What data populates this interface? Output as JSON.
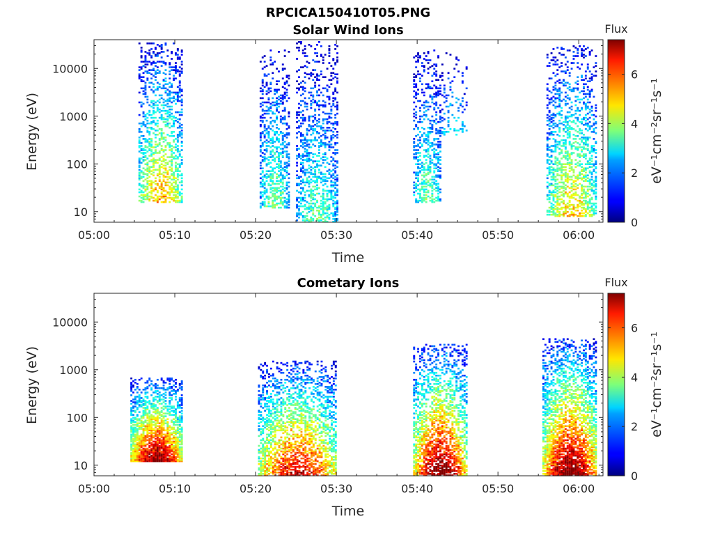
{
  "figure": {
    "title": "RPCICA150410T05.PNG"
  },
  "chart_data": [
    {
      "type": "heatmap",
      "title": "Solar Wind Ions",
      "xlabel": "Time",
      "ylabel": "Energy (eV)",
      "x_ticks": [
        "05:00",
        "05:10",
        "05:20",
        "05:30",
        "05:40",
        "05:50",
        "06:00"
      ],
      "xlim_minutes": [
        0,
        63
      ],
      "y_scale": "log",
      "y_ticks": [
        "10",
        "100",
        "1000",
        "10000"
      ],
      "ylim": [
        6,
        40000
      ],
      "colorbar": {
        "title": "Flux",
        "label": "eV⁻¹cm⁻²sr⁻¹s⁻¹",
        "ticks": [
          "0",
          "2",
          "4",
          "6"
        ],
        "range": [
          0,
          7.4
        ],
        "colormap": "jet"
      },
      "clusters": [
        {
          "t0": 5.5,
          "t1": 10.8,
          "e_lo": 15,
          "e_hi": 35000,
          "peak": 5.0,
          "density": 0.45
        },
        {
          "t0": 20.5,
          "t1": 24.0,
          "e_lo": 12,
          "e_hi": 25000,
          "peak": 3.6,
          "density": 0.4
        },
        {
          "t0": 25.0,
          "t1": 30.0,
          "e_lo": 6,
          "e_hi": 38000,
          "peak": 3.3,
          "density": 0.38
        },
        {
          "t0": 39.5,
          "t1": 42.8,
          "e_lo": 15,
          "e_hi": 25000,
          "peak": 3.5,
          "density": 0.42
        },
        {
          "t0": 43.0,
          "t1": 46.0,
          "e_lo": 400,
          "e_hi": 22000,
          "peak": 2.8,
          "density": 0.15
        },
        {
          "t0": 56.0,
          "t1": 62.0,
          "e_lo": 8,
          "e_hi": 30000,
          "peak": 4.8,
          "density": 0.42
        }
      ]
    },
    {
      "type": "heatmap",
      "title": "Cometary Ions",
      "xlabel": "Time",
      "ylabel": "Energy (eV)",
      "x_ticks": [
        "05:00",
        "05:10",
        "05:20",
        "05:30",
        "05:40",
        "05:50",
        "06:00"
      ],
      "xlim_minutes": [
        0,
        63
      ],
      "y_scale": "log",
      "y_ticks": [
        "10",
        "100",
        "1000",
        "10000"
      ],
      "ylim": [
        6,
        40000
      ],
      "colorbar": {
        "title": "Flux",
        "label": "eV⁻¹cm⁻²sr⁻¹s⁻¹",
        "ticks": [
          "0",
          "2",
          "4",
          "6"
        ],
        "range": [
          0,
          7.4
        ],
        "colormap": "jet"
      },
      "clusters": [
        {
          "t0": 4.5,
          "t1": 10.8,
          "e_lo": 12,
          "e_hi": 700,
          "peak": 7.2,
          "density": 0.8
        },
        {
          "t0": 20.3,
          "t1": 30.0,
          "e_lo": 6,
          "e_hi": 1500,
          "peak": 6.5,
          "density": 0.55
        },
        {
          "t0": 39.5,
          "t1": 46.0,
          "e_lo": 6,
          "e_hi": 3500,
          "peak": 7.3,
          "density": 0.6
        },
        {
          "t0": 55.5,
          "t1": 62.2,
          "e_lo": 6,
          "e_hi": 4500,
          "peak": 7.3,
          "density": 0.7
        }
      ]
    }
  ]
}
